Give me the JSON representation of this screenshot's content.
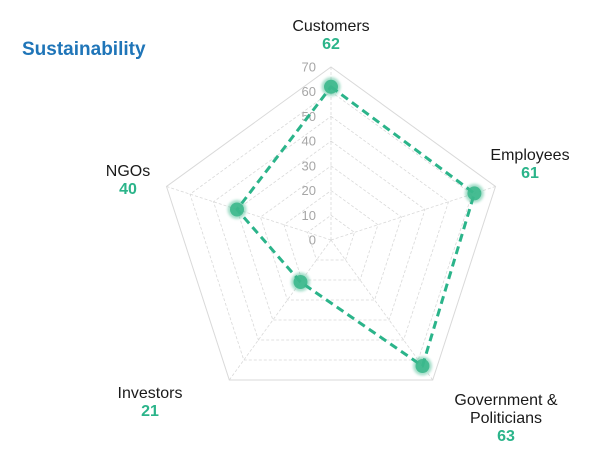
{
  "chart_data": {
    "type": "radar",
    "title": "Sustainability",
    "categories": [
      {
        "lines": [
          "Customers"
        ],
        "value_label": "62"
      },
      {
        "lines": [
          "Employees"
        ],
        "value_label": "61"
      },
      {
        "lines": [
          "Government &",
          "Politicians"
        ],
        "value_label": "63"
      },
      {
        "lines": [
          "Investors"
        ],
        "value_label": "21"
      },
      {
        "lines": [
          "NGOs"
        ],
        "value_label": "40"
      }
    ],
    "values": [
      62,
      61,
      63,
      21,
      40
    ],
    "rlim": [
      0,
      70
    ],
    "ticks": [
      "0",
      "10",
      "20",
      "30",
      "40",
      "50",
      "60",
      "70"
    ],
    "grid": true,
    "colors": {
      "series": "#2bb48a",
      "marker": "#3cb88c",
      "grid": "#d9d9d9",
      "title": "#1f75b8",
      "value_text": "#2bb48a"
    }
  }
}
